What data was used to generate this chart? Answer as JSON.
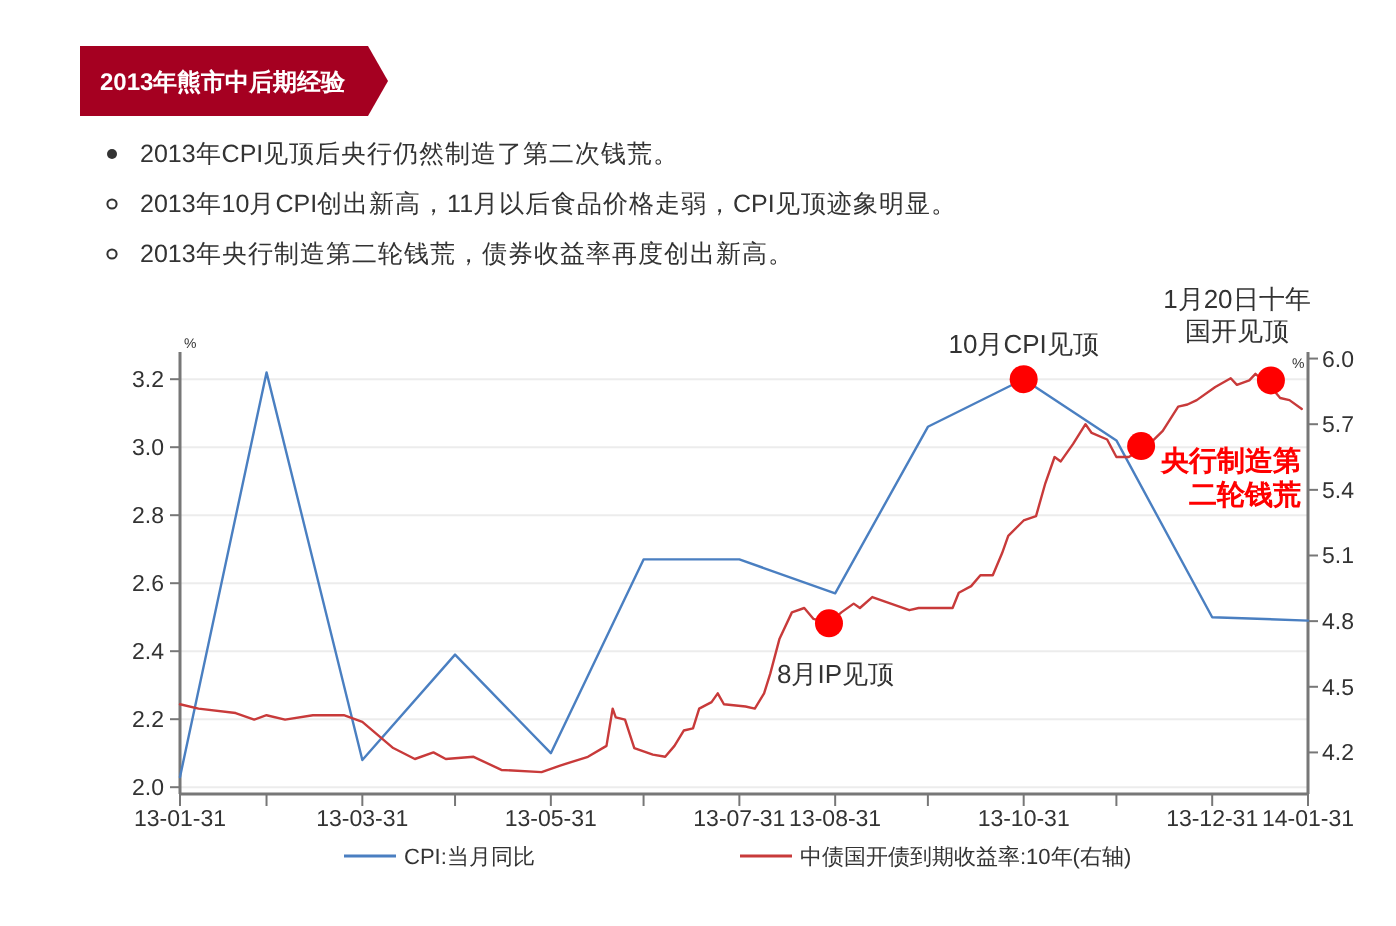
{
  "chart_data": {
    "type": "line",
    "title": "2013年熊市中后期经验",
    "ylabel": "%",
    "y2label": "%",
    "annotations": [
      "2013年CPI见顶后央行仍然制造了第二次钱荒。",
      "2013年10月CPI创出新高，11月以后食品价格走弱，CPI见顶迹象明显。",
      "2013年央行制造第二轮钱荒，债券收益率再度创出新高。",
      {
        "text": "10月CPI见顶",
        "x": "2013-10-31",
        "y": 3.2
      },
      "8月IP见顶",
      "央行制造第二轮钱荒",
      "1月20日十年国开见顶"
    ],
    "xlim": [
      "2013-01-31",
      "2014-01-31"
    ],
    "xticks": [
      {
        "value": "2013-01-31",
        "label": "13-01-31"
      },
      {
        "value": "2013-02-28",
        "label": null
      },
      {
        "value": "2013-03-31",
        "label": "13-03-31"
      },
      {
        "value": "2013-04-30",
        "label": null
      },
      {
        "value": "2013-05-31",
        "label": "13-05-31"
      },
      {
        "value": "2013-06-30",
        "label": null
      },
      {
        "value": "2013-07-31",
        "label": "13-07-31"
      },
      {
        "value": "2013-08-31",
        "label": "13-08-31"
      },
      {
        "value": "2013-09-30",
        "label": null
      },
      {
        "value": "2013-10-31",
        "label": "13-10-31"
      },
      {
        "value": "2013-11-30",
        "label": null
      },
      {
        "value": "2013-12-31",
        "label": "13-12-31"
      },
      {
        "value": "2014-01-31",
        "label": "14-01-31"
      }
    ],
    "ylim": [
      1.98,
      3.28
    ],
    "yticks": [
      {
        "value": 2,
        "label": "2.0"
      },
      2.2,
      2.4,
      2.6,
      2.8,
      {
        "value": 3,
        "label": "3.0"
      },
      3.2
    ],
    "y2lim": [
      4.01,
      6.03
    ],
    "y2ticks": [
      4.2,
      4.5,
      4.8,
      5.1,
      5.4,
      5.7,
      {
        "value": 6,
        "label": "6.0"
      }
    ],
    "grid": "y",
    "legend": "bottom",
    "marker": "none",
    "line_style": "solid",
    "series": [
      {
        "name": "CPI:当月同比",
        "color": "#4a7fc1",
        "x": [
          "2013-01-31",
          "2013-02-28",
          "2013-03-31",
          "2013-04-30",
          "2013-05-31",
          "2013-06-30",
          "2013-07-31",
          "2013-08-31",
          "2013-09-30",
          "2013-10-31",
          "2013-11-30",
          "2013-12-31",
          "2014-01-31"
        ],
        "values": [
          2.03,
          3.22,
          2.08,
          2.39,
          2.1,
          2.67,
          2.67,
          2.57,
          3.06,
          3.2,
          3.02,
          2.5,
          2.49
        ]
      },
      {
        "name": "中债国开债到期收益率:10年(右轴)",
        "color": "#c83a3a",
        "axis": "y2",
        "x": [
          "2013-01-31",
          "2013-02-06",
          "2013-02-18",
          "2013-02-24",
          "2013-02-28",
          "2013-03-06",
          "2013-03-15",
          "2013-03-25",
          "2013-03-31",
          "2013-04-10",
          "2013-04-17",
          "2013-04-23",
          "2013-04-27",
          "2013-05-06",
          "2013-05-15",
          "2013-05-28",
          "2013-06-03",
          "2013-06-12",
          "2013-06-18",
          "2013-06-20",
          "2013-06-21",
          "2013-06-24",
          "2013-06-27",
          "2013-07-03",
          "2013-07-07",
          "2013-07-10",
          "2013-07-13",
          "2013-07-16",
          "2013-07-18",
          "2013-07-22",
          "2013-07-24",
          "2013-07-26",
          "2013-08-02",
          "2013-08-05",
          "2013-08-08",
          "2013-08-10",
          "2013-08-13",
          "2013-08-17",
          "2013-08-21",
          "2013-08-24",
          "2013-08-29",
          "2013-09-02",
          "2013-09-06",
          "2013-09-08",
          "2013-09-12",
          "2013-09-18",
          "2013-09-24",
          "2013-09-27",
          "2013-10-08",
          "2013-10-10",
          "2013-10-14",
          "2013-10-17",
          "2013-10-21",
          "2013-10-24",
          "2013-10-26",
          "2013-10-31",
          "2013-11-04",
          "2013-11-07",
          "2013-11-10",
          "2013-11-12",
          "2013-11-16",
          "2013-11-20",
          "2013-11-22",
          "2013-11-27",
          "2013-11-30",
          "2013-12-04",
          "2013-12-10",
          "2013-12-15",
          "2013-12-20",
          "2013-12-23",
          "2013-12-26",
          "2014-01-01",
          "2014-01-06",
          "2014-01-08",
          "2014-01-12",
          "2014-01-14",
          "2014-01-19",
          "2014-01-22",
          "2014-01-25",
          "2014-01-29"
        ],
        "values": [
          4.42,
          4.4,
          4.38,
          4.35,
          4.37,
          4.35,
          4.37,
          4.37,
          4.34,
          4.22,
          4.17,
          4.2,
          4.17,
          4.18,
          4.12,
          4.11,
          4.14,
          4.18,
          4.23,
          4.4,
          4.36,
          4.35,
          4.22,
          4.19,
          4.18,
          4.23,
          4.3,
          4.31,
          4.4,
          4.43,
          4.47,
          4.42,
          4.41,
          4.4,
          4.47,
          4.56,
          4.72,
          4.84,
          4.86,
          4.81,
          4.79,
          4.84,
          4.88,
          4.86,
          4.91,
          4.88,
          4.85,
          4.86,
          4.86,
          4.93,
          4.96,
          5.01,
          5.01,
          5.11,
          5.19,
          5.26,
          5.28,
          5.43,
          5.55,
          5.53,
          5.61,
          5.7,
          5.66,
          5.63,
          5.55,
          5.55,
          5.6,
          5.67,
          5.78,
          5.79,
          5.81,
          5.87,
          5.91,
          5.88,
          5.9,
          5.93,
          5.87,
          5.82,
          5.81,
          5.77
        ]
      },
      {
        "type": "scatter",
        "marker": "circle",
        "color": "#ff0000",
        "x": [
          "2013-10-31"
        ],
        "values": [
          3.2
        ]
      },
      {
        "type": "scatter",
        "marker": "circle",
        "color": "#ff0000",
        "axis": "y2",
        "x": [
          "2013-08-29",
          "2013-12-08",
          "2014-01-19"
        ],
        "values": [
          4.79,
          5.6,
          5.9
        ]
      }
    ]
  }
}
